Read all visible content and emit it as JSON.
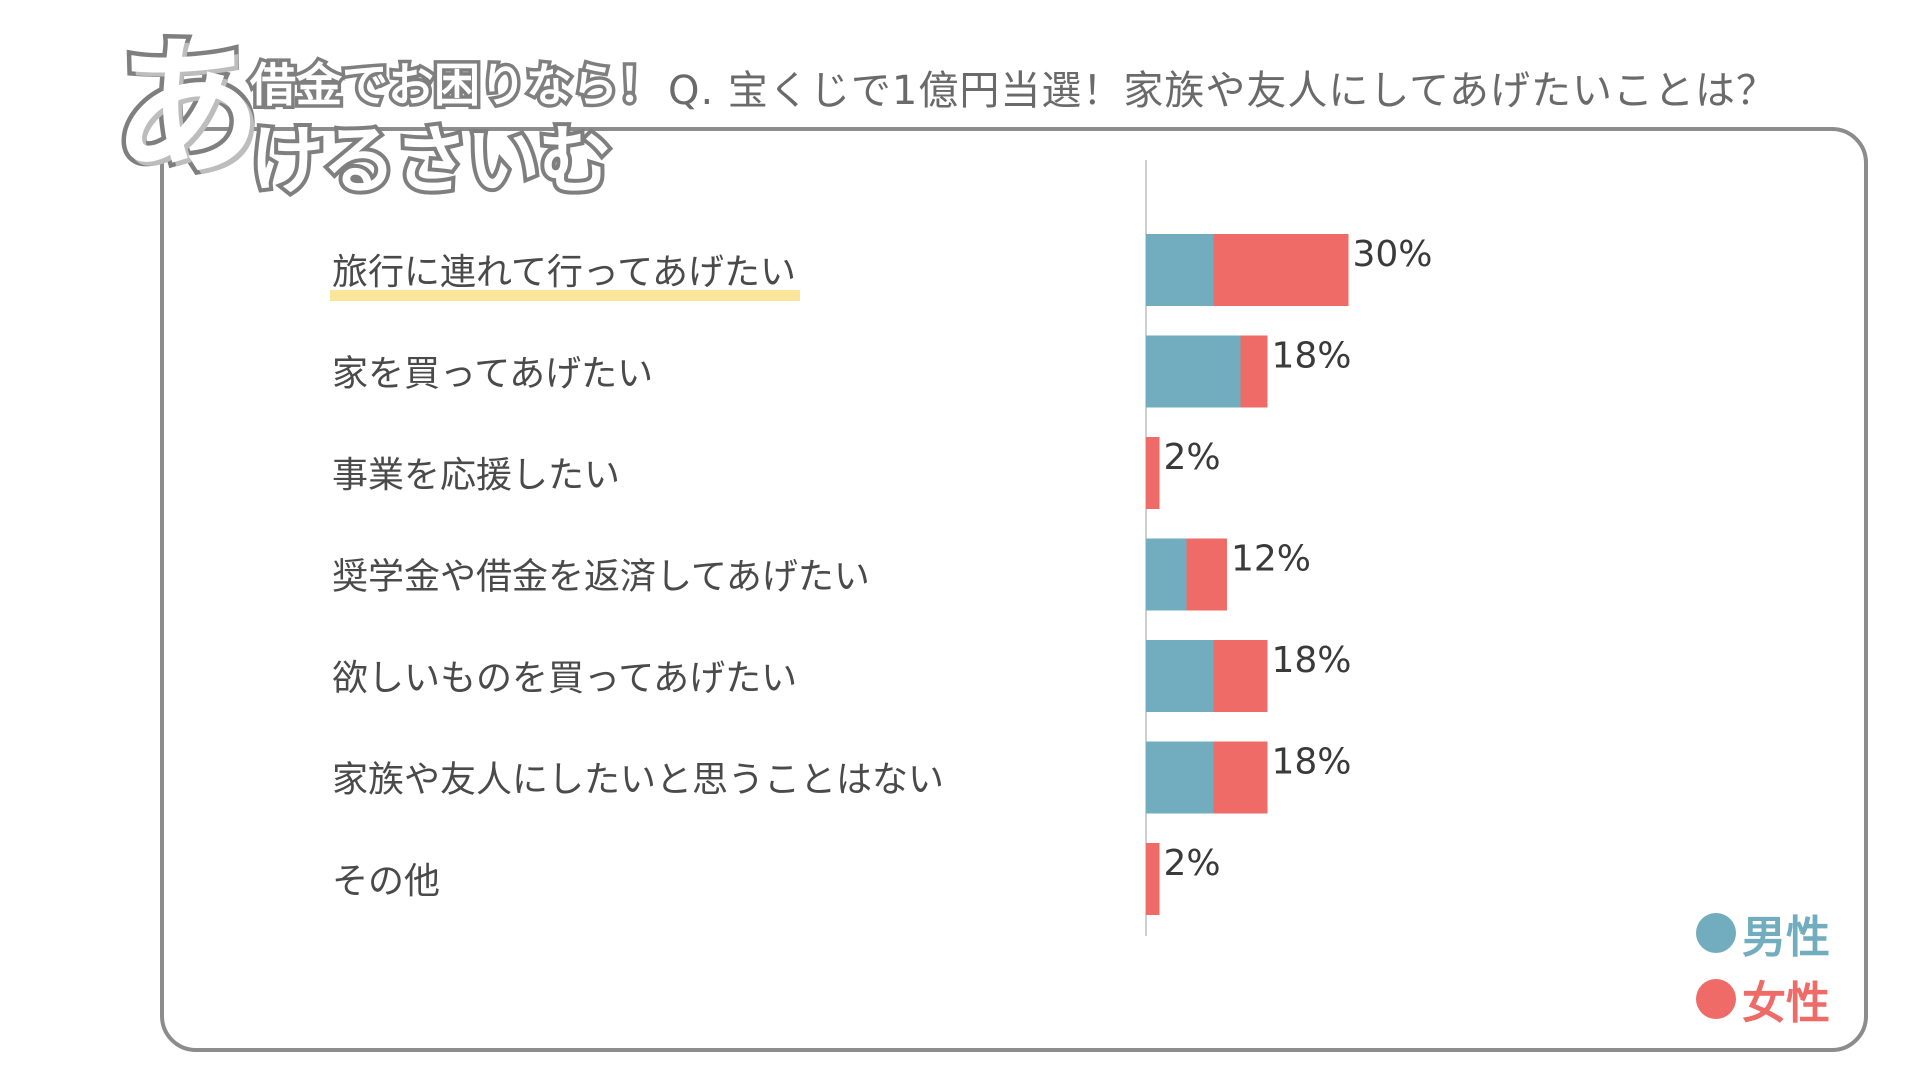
{
  "logo": {
    "big": "あ",
    "top": "借金でお困りなら！",
    "bottom": "けるさいむ"
  },
  "question": "Q. 宝くじで1億円当選！家族や友人にしてあげたいことは？",
  "colors": {
    "male": "#71adbf",
    "female": "#ee6b67",
    "highlight": "#fbe59a",
    "axis": "#cfcfcf"
  },
  "chart_data": {
    "type": "bar",
    "orientation": "horizontal",
    "stacked": true,
    "categories": [
      "旅行に連れて行ってあげたい",
      "家を買ってあげたい",
      "事業を応援したい",
      "奨学金や借金を返済してあげたい",
      "欲しいものを買ってあげたい",
      "家族や友人にしたいと思うことはない",
      "その他"
    ],
    "series": [
      {
        "name": "男性",
        "values": [
          10,
          14,
          0,
          6,
          10,
          10,
          0
        ]
      },
      {
        "name": "女性",
        "values": [
          20,
          4,
          2,
          6,
          8,
          8,
          2
        ]
      }
    ],
    "totals": [
      "30%",
      "18%",
      "2%",
      "12%",
      "18%",
      "18%",
      "2%"
    ],
    "highlighted_category": 0,
    "xlim": [
      0,
      30
    ],
    "legend_position": "bottom-right"
  }
}
